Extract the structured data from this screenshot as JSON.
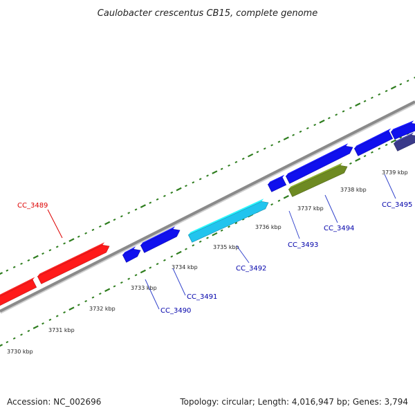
{
  "title": "Caulobacter crescentus CB15, complete genome",
  "footer": {
    "accession": "Accession: NC_002696",
    "summary": "Topology: circular; Length: 4,016,947 bp; Genes: 3,794"
  },
  "colors": {
    "background": "#ffffff",
    "backbone": "#8a8a8a",
    "tick": "#2e7d1e",
    "label_default": "#0000aa",
    "label_highlight": "#dd0000",
    "leader": "#3344cc",
    "leader_highlight": "#dd0000"
  },
  "kbp_labels": [
    "3730 kbp",
    "3731 kbp",
    "3732 kbp",
    "3733 kbp",
    "3734 kbp",
    "3735 kbp",
    "3736 kbp",
    "3737 kbp",
    "3738 kbp",
    "3739 kbp"
  ],
  "genes": [
    {
      "label": "CC_3489",
      "color": "#ff1a1a",
      "strand": "forward",
      "highlight": true
    },
    {
      "label": "CC_3490",
      "color": "#1010ee",
      "strand": "forward",
      "highlight": false
    },
    {
      "label": "CC_3491",
      "color": "#1010ee",
      "strand": "forward",
      "highlight": false
    },
    {
      "label": "CC_3492",
      "color": "#22c4ee",
      "strand": "reverse",
      "highlight": false
    },
    {
      "label": "CC_3493",
      "color": "#1010ee",
      "strand": "forward",
      "highlight": false
    },
    {
      "label": "CC_3494",
      "color": "#6e8a22",
      "strand": "reverse",
      "highlight": false
    },
    {
      "label": "CC_3495",
      "color": "#1010ee",
      "strand": "forward",
      "highlight": false
    },
    {
      "label": "",
      "color": "#3a3a8a",
      "strand": "reverse",
      "highlight": false
    }
  ]
}
